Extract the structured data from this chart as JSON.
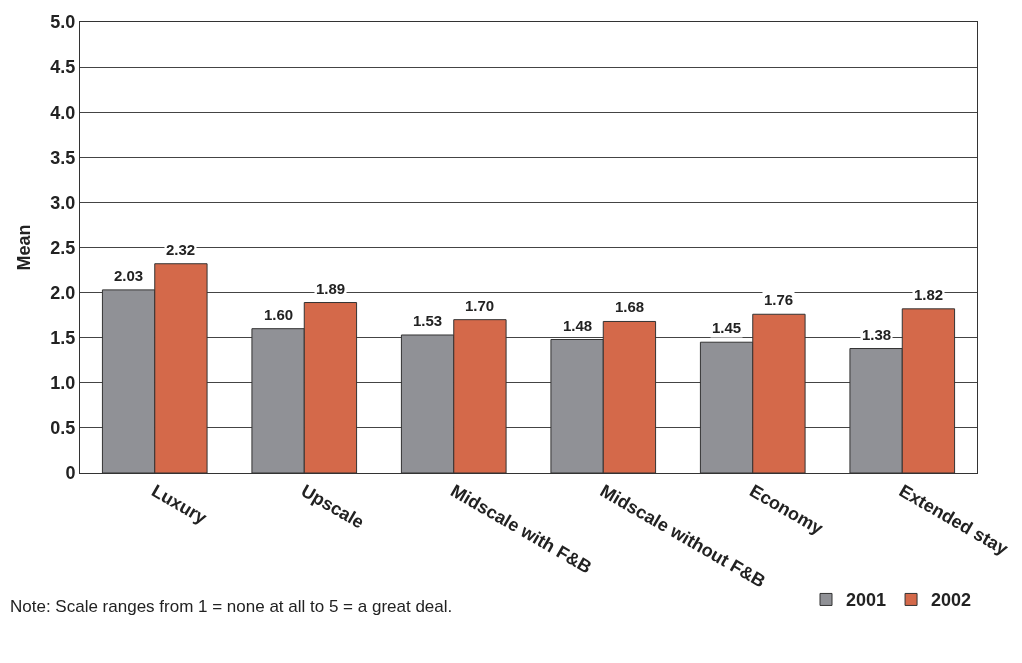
{
  "chart_data": {
    "type": "bar",
    "ylabel": "Mean",
    "categories": [
      "Luxury",
      "Upscale",
      "Midscale with F&B",
      "Midscale without F&B",
      "Economy",
      "Extended stay"
    ],
    "series": [
      {
        "name": "2001",
        "color": "#909196",
        "values": [
          2.03,
          1.6,
          1.53,
          1.48,
          1.45,
          1.38
        ],
        "value_labels": [
          "2.03",
          "1.60",
          "1.53",
          "1.48",
          "1.45",
          "1.38"
        ]
      },
      {
        "name": "2002",
        "color": "#d4694a",
        "values": [
          2.32,
          1.89,
          1.7,
          1.68,
          1.76,
          1.82
        ],
        "value_labels": [
          "2.32",
          "1.89",
          "1.70",
          "1.68",
          "1.76",
          "1.82"
        ]
      }
    ],
    "ylim": [
      0,
      5
    ],
    "yticks": [
      0,
      {
        "value": 0.5,
        "label": "0.5"
      },
      {
        "value": 1,
        "label": "1.0"
      },
      {
        "value": 1.5,
        "label": "1.5"
      },
      {
        "value": 2,
        "label": "2.0"
      },
      {
        "value": 2.5,
        "label": "2.5"
      },
      {
        "value": 3,
        "label": "3.0"
      },
      {
        "value": 3.5,
        "label": "3.5"
      },
      {
        "value": 4,
        "label": "4.0"
      },
      {
        "value": 4.5,
        "label": "4.5"
      },
      {
        "value": 5,
        "label": "5.0"
      }
    ],
    "grid": "y",
    "legend": "bottom right",
    "annotations": [
      "Note: Scale ranges from 1 = none at all to 5 = a great deal."
    ]
  }
}
